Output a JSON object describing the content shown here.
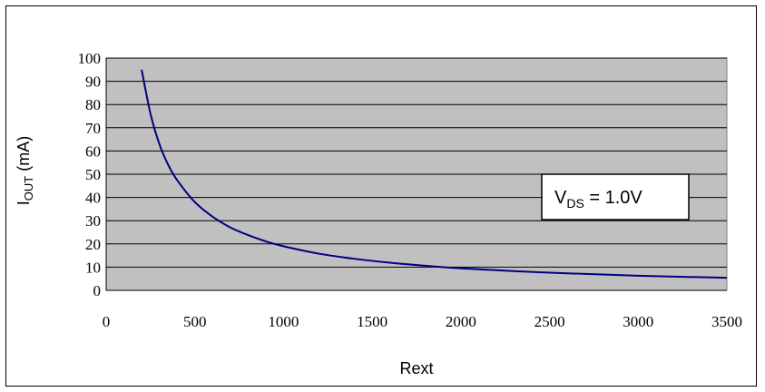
{
  "chart_data": {
    "type": "line",
    "xlabel": "Rext",
    "ylabel": {
      "main": "I",
      "sub": "OUT",
      "unit": " (mA)"
    },
    "xlim": [
      0,
      3500
    ],
    "ylim": [
      0,
      100
    ],
    "x_ticks": [
      "0",
      "500",
      "1000",
      "1500",
      "2000",
      "2500",
      "3000",
      "3500"
    ],
    "y_ticks": [
      "0",
      "10",
      "20",
      "30",
      "40",
      "50",
      "60",
      "70",
      "80",
      "90",
      "100"
    ],
    "plot_background": "#c0c0c0",
    "grid": "horizontal",
    "series": [
      {
        "color": "#000080",
        "x": [
          200,
          250,
          300,
          350,
          400,
          500,
          600,
          700,
          800,
          900,
          1000,
          1200,
          1400,
          1600,
          1800,
          2000,
          2500,
          3000,
          3500
        ],
        "y": [
          95,
          76,
          63,
          54,
          47.5,
          38,
          31.7,
          27.1,
          23.8,
          21.1,
          19,
          15.8,
          13.6,
          11.9,
          10.6,
          9.5,
          7.6,
          6.3,
          5.4
        ]
      }
    ],
    "annotation": {
      "main": "V",
      "sub": "DS",
      "rest": " = 1.0V"
    }
  }
}
